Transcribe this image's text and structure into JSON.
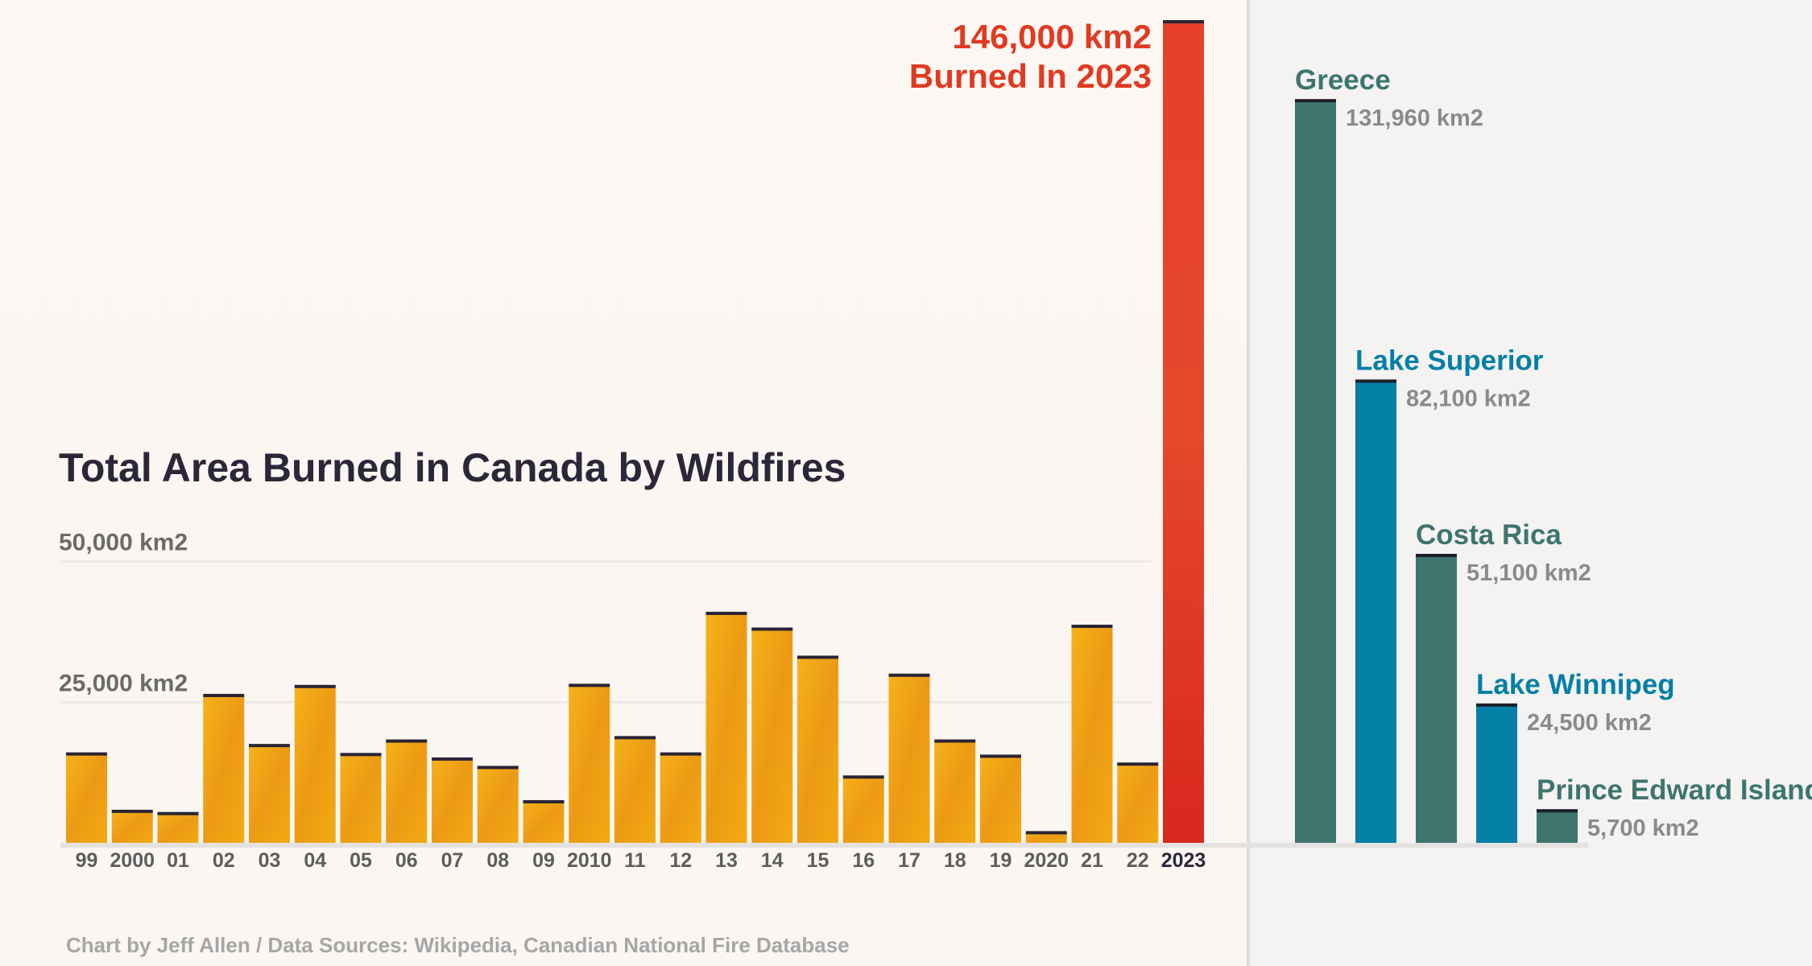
{
  "chart_data": [
    {
      "type": "bar",
      "title": "Total Area Burned in Canada by Wildfires",
      "categories": [
        "99",
        "2000",
        "01",
        "02",
        "03",
        "04",
        "05",
        "06",
        "07",
        "08",
        "09",
        "2010",
        "11",
        "12",
        "13",
        "14",
        "15",
        "16",
        "17",
        "18",
        "19",
        "2020",
        "21",
        "22",
        "2023"
      ],
      "values": [
        15800,
        5600,
        5200,
        26200,
        17300,
        27800,
        15700,
        18100,
        14900,
        13400,
        7300,
        28000,
        18700,
        15800,
        40800,
        38000,
        33000,
        11700,
        29800,
        18100,
        15400,
        1800,
        38500,
        14000,
        146000
      ],
      "ylim": [
        0,
        146000
      ],
      "y_ticks": [
        {
          "value": 25000,
          "label": "25,000 km2"
        },
        {
          "value": 50000,
          "label": "50,000 km2"
        }
      ],
      "highlight": {
        "category": "2023",
        "line1": "146,000 km2",
        "line2": "Burned In 2023"
      },
      "colors": {
        "bars": "#f0a514",
        "highlight": "#e03a22",
        "cap": "#2a2434",
        "title": "#2a2838"
      }
    },
    {
      "type": "bar",
      "categories": [
        "Greece",
        "Lake Superior",
        "Costa Rica",
        "Lake Winnipeg",
        "Prince Edward Island"
      ],
      "values": [
        131960,
        82100,
        51100,
        24500,
        5700
      ],
      "value_labels": [
        "131,960 km2",
        "82,100 km2",
        "51,100 km2",
        "24,500 km2",
        "5,700 km2"
      ],
      "ylim": [
        0,
        146000
      ],
      "colors": {
        "land": "#3d756e",
        "water": "#047fa6",
        "value_text": "#8a8a8a"
      },
      "kinds": [
        "land",
        "water",
        "land",
        "water",
        "land"
      ]
    }
  ],
  "credit": "Chart by Jeff Allen / Data Sources: Wikipedia, Canadian National Fire Database"
}
